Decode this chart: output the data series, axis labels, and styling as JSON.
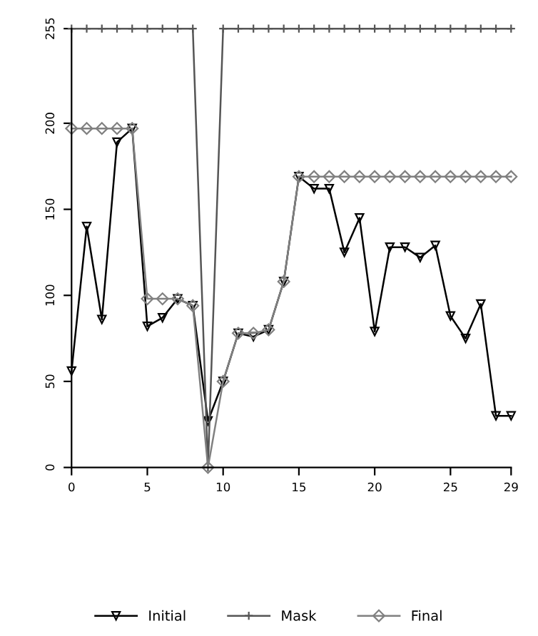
{
  "chart_data": {
    "type": "line",
    "x": [
      0,
      1,
      2,
      3,
      4,
      5,
      6,
      7,
      8,
      9,
      10,
      11,
      12,
      13,
      14,
      15,
      16,
      17,
      18,
      19,
      20,
      21,
      22,
      23,
      24,
      25,
      26,
      27,
      28,
      29
    ],
    "series": [
      {
        "name": "Initial",
        "color": "#000000",
        "marker": "triangle",
        "values": [
          56,
          140,
          86,
          189,
          197,
          82,
          87,
          98,
          94,
          27,
          50,
          78,
          76,
          80,
          108,
          169,
          162,
          162,
          125,
          145,
          79,
          128,
          128,
          122,
          129,
          88,
          75,
          95,
          30,
          30
        ]
      },
      {
        "name": "Mask",
        "color": "#555555",
        "marker": "cross",
        "values": [
          255,
          255,
          255,
          255,
          255,
          255,
          255,
          255,
          255,
          0,
          255,
          255,
          255,
          255,
          255,
          255,
          255,
          255,
          255,
          255,
          255,
          255,
          255,
          255,
          255,
          255,
          255,
          255,
          255,
          255
        ]
      },
      {
        "name": "Final",
        "color": "#808080",
        "marker": "diamond",
        "values": [
          197,
          197,
          197,
          197,
          197,
          98,
          98,
          98,
          94,
          0,
          50,
          78,
          78,
          80,
          108,
          169,
          169,
          169,
          169,
          169,
          169,
          169,
          169,
          169,
          169,
          169,
          169,
          169,
          169,
          169
        ]
      }
    ],
    "xlim": [
      0,
      29
    ],
    "xticks": [
      0,
      5,
      10,
      15,
      20,
      25,
      29
    ],
    "ylim": [
      0,
      255
    ],
    "yticks": [
      0,
      50,
      100,
      150,
      200,
      255
    ],
    "grid": false,
    "legend": "bottom"
  }
}
